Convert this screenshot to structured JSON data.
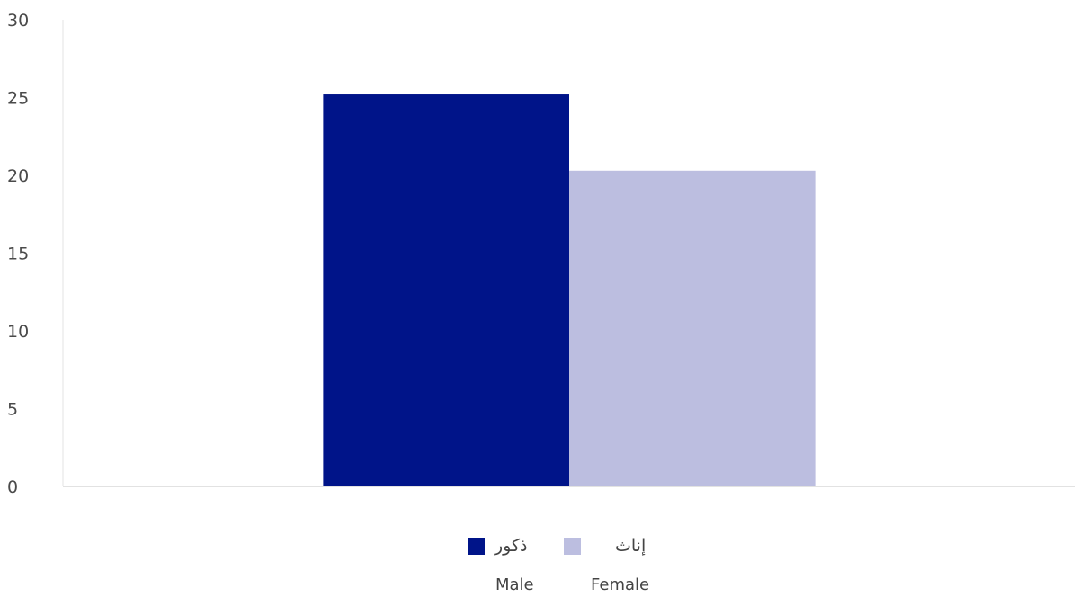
{
  "chart_data": {
    "type": "bar",
    "categories": [
      ""
    ],
    "series": [
      {
        "name": "ذكور",
        "name_en": "Male",
        "values": [
          25.2
        ],
        "color": "#001489"
      },
      {
        "name": "إناث",
        "name_en": "Female",
        "values": [
          20.3
        ],
        "color": "#bcbee0"
      }
    ],
    "ylim": [
      0,
      30
    ],
    "yticks": [
      0,
      5,
      10,
      15,
      20,
      25,
      30
    ],
    "xlabel": "",
    "ylabel": "",
    "grid": false,
    "legend": "bottom-center",
    "axis_color": "#d9d9d9"
  },
  "legend": {
    "male_ar": "ذكور",
    "female_ar": "إناث",
    "male_en": "Male",
    "female_en": "Female"
  }
}
